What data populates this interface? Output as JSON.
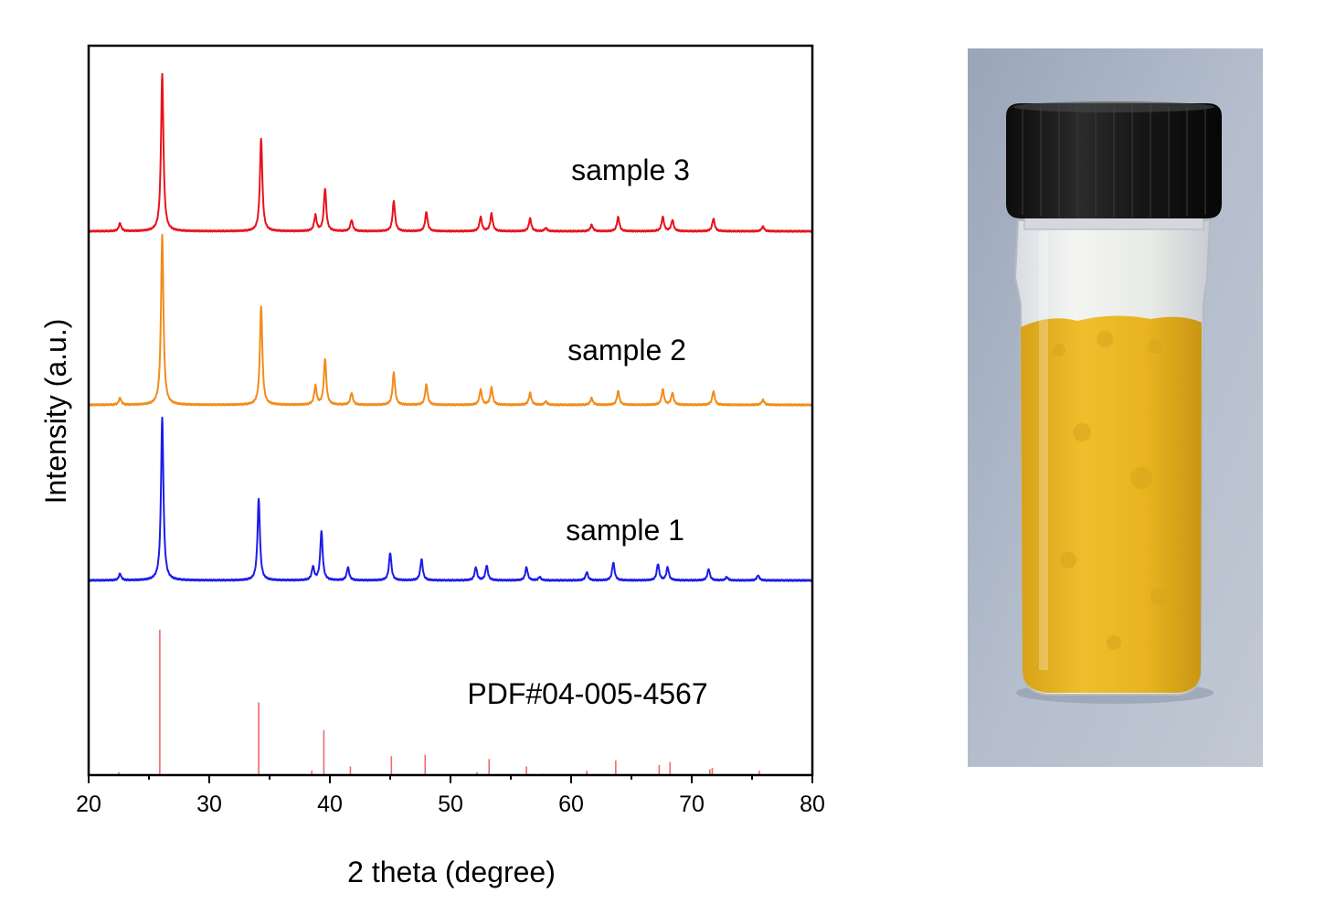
{
  "chart_data": {
    "type": "line",
    "xlabel": "2 theta (degree)",
    "ylabel": "Intensity (a.u.)",
    "xlim": [
      20,
      80
    ],
    "x_ticks": [
      20,
      30,
      40,
      50,
      60,
      70,
      80
    ],
    "y_ticks": [],
    "grid": false,
    "series": [
      {
        "name": "sample 3",
        "color": "#e8141c",
        "peaks": [
          [
            22.6,
            5
          ],
          [
            26.1,
            100
          ],
          [
            34.3,
            59
          ],
          [
            38.8,
            10
          ],
          [
            39.6,
            27
          ],
          [
            41.8,
            7
          ],
          [
            45.3,
            19
          ],
          [
            48.0,
            12
          ],
          [
            52.5,
            9
          ],
          [
            53.4,
            11
          ],
          [
            56.6,
            8
          ],
          [
            57.9,
            2
          ],
          [
            61.7,
            4
          ],
          [
            63.9,
            9
          ],
          [
            67.6,
            9
          ],
          [
            68.4,
            7
          ],
          [
            71.8,
            8
          ],
          [
            75.9,
            3
          ]
        ]
      },
      {
        "name": "sample 2",
        "color": "#f28c1b",
        "peaks": [
          [
            22.6,
            4
          ],
          [
            26.1,
            100
          ],
          [
            34.3,
            58
          ],
          [
            38.8,
            11
          ],
          [
            39.6,
            27
          ],
          [
            41.8,
            7
          ],
          [
            45.3,
            19
          ],
          [
            48.0,
            12
          ],
          [
            52.5,
            9
          ],
          [
            53.4,
            10
          ],
          [
            56.6,
            7
          ],
          [
            57.9,
            2
          ],
          [
            61.7,
            4
          ],
          [
            63.9,
            8
          ],
          [
            67.6,
            9
          ],
          [
            68.4,
            7
          ],
          [
            71.8,
            8
          ],
          [
            75.9,
            3
          ]
        ]
      },
      {
        "name": "sample 1",
        "color": "#1c1ce8",
        "peaks": [
          [
            22.6,
            4
          ],
          [
            26.1,
            100
          ],
          [
            34.1,
            50
          ],
          [
            38.6,
            8
          ],
          [
            39.3,
            30
          ],
          [
            41.5,
            8
          ],
          [
            45.0,
            17
          ],
          [
            47.6,
            13
          ],
          [
            52.1,
            8
          ],
          [
            53.0,
            9
          ],
          [
            56.3,
            8
          ],
          [
            57.4,
            2
          ],
          [
            61.3,
            5
          ],
          [
            63.5,
            11
          ],
          [
            67.2,
            10
          ],
          [
            68.0,
            8
          ],
          [
            71.4,
            7
          ],
          [
            72.9,
            2
          ],
          [
            75.5,
            3
          ]
        ]
      },
      {
        "name": "PDF#04-005-4567",
        "color": "#f06a6a",
        "style": "stick",
        "peaks": [
          [
            22.5,
            2
          ],
          [
            25.9,
            100
          ],
          [
            34.1,
            50
          ],
          [
            38.5,
            3
          ],
          [
            39.5,
            31
          ],
          [
            41.7,
            6
          ],
          [
            45.1,
            13
          ],
          [
            47.9,
            14
          ],
          [
            52.2,
            2
          ],
          [
            53.2,
            11
          ],
          [
            56.3,
            6
          ],
          [
            57.6,
            1
          ],
          [
            61.3,
            3
          ],
          [
            63.7,
            10
          ],
          [
            67.3,
            7
          ],
          [
            68.2,
            9
          ],
          [
            71.5,
            4
          ],
          [
            71.7,
            5
          ],
          [
            75.6,
            3
          ]
        ]
      }
    ]
  },
  "photo": {
    "subject": "glass vial with black screw cap containing yellow powder",
    "cap_color": "#151515",
    "powder_color": "#e7b41f",
    "background_color": "#a8b3c5"
  }
}
